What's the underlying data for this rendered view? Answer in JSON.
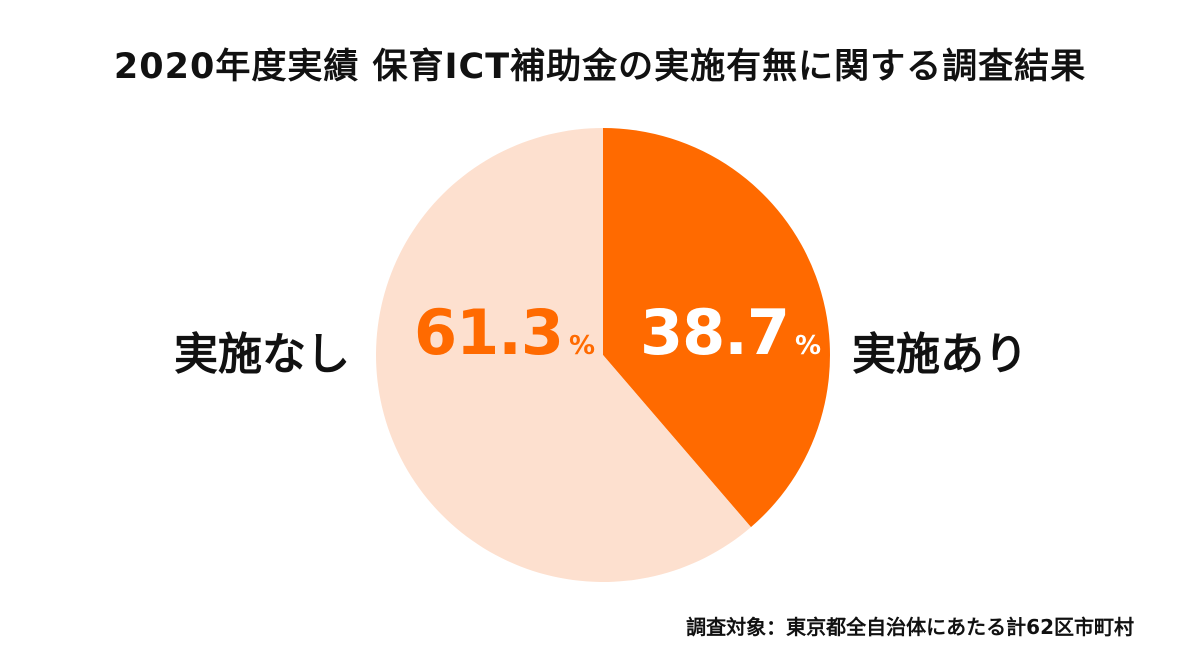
{
  "chart_data": {
    "type": "pie",
    "title": "2020年度実績  保育ICT補助金の実施有無に関する調査結果",
    "slices": [
      {
        "label": "実施あり",
        "value": 38.7,
        "color": "#FF6A00",
        "value_label": "38.7",
        "unit": "%"
      },
      {
        "label": "実施なし",
        "value": 61.3,
        "color": "#FDE0CF",
        "value_label": "61.3",
        "unit": "%"
      }
    ],
    "start_angle": "12 o'clock",
    "direction": "clockwise"
  },
  "footnote": "調査対象：東京都全自治体にあたる計62区市町村"
}
